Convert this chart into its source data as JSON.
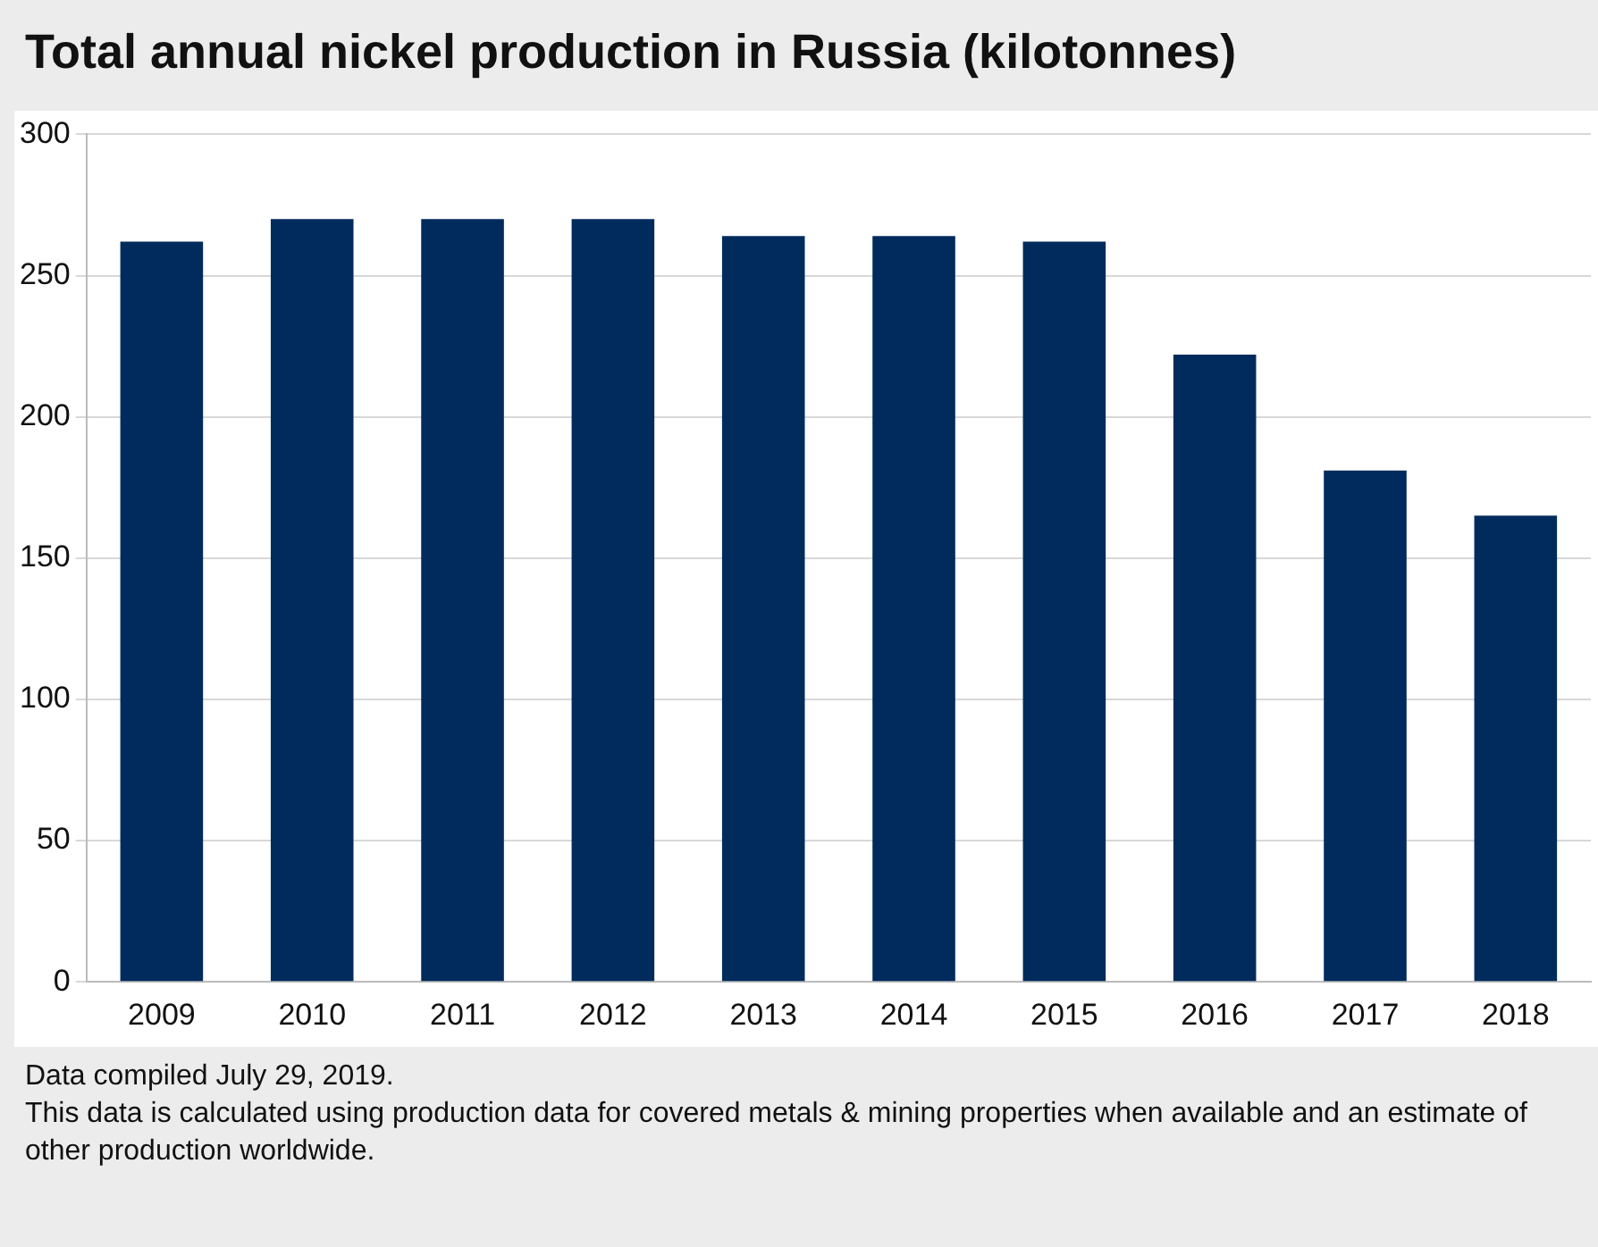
{
  "chart_data": {
    "type": "bar",
    "title": "Total annual nickel production in Russia (kilotonnes)",
    "categories": [
      "2009",
      "2010",
      "2011",
      "2012",
      "2013",
      "2014",
      "2015",
      "2016",
      "2017",
      "2018"
    ],
    "values": [
      262,
      270,
      270,
      270,
      264,
      264,
      262,
      222,
      181,
      165
    ],
    "color": "#002b5c",
    "ylim": [
      0,
      300
    ],
    "yticks": [
      0,
      50,
      100,
      150,
      200,
      250,
      300
    ],
    "grid": "y",
    "legend": false,
    "annotations": [
      "Data compiled July 29, 2019.",
      "This data is calculated using production data for covered metals & mining properties when available and an estimate of other production worldwide."
    ]
  }
}
